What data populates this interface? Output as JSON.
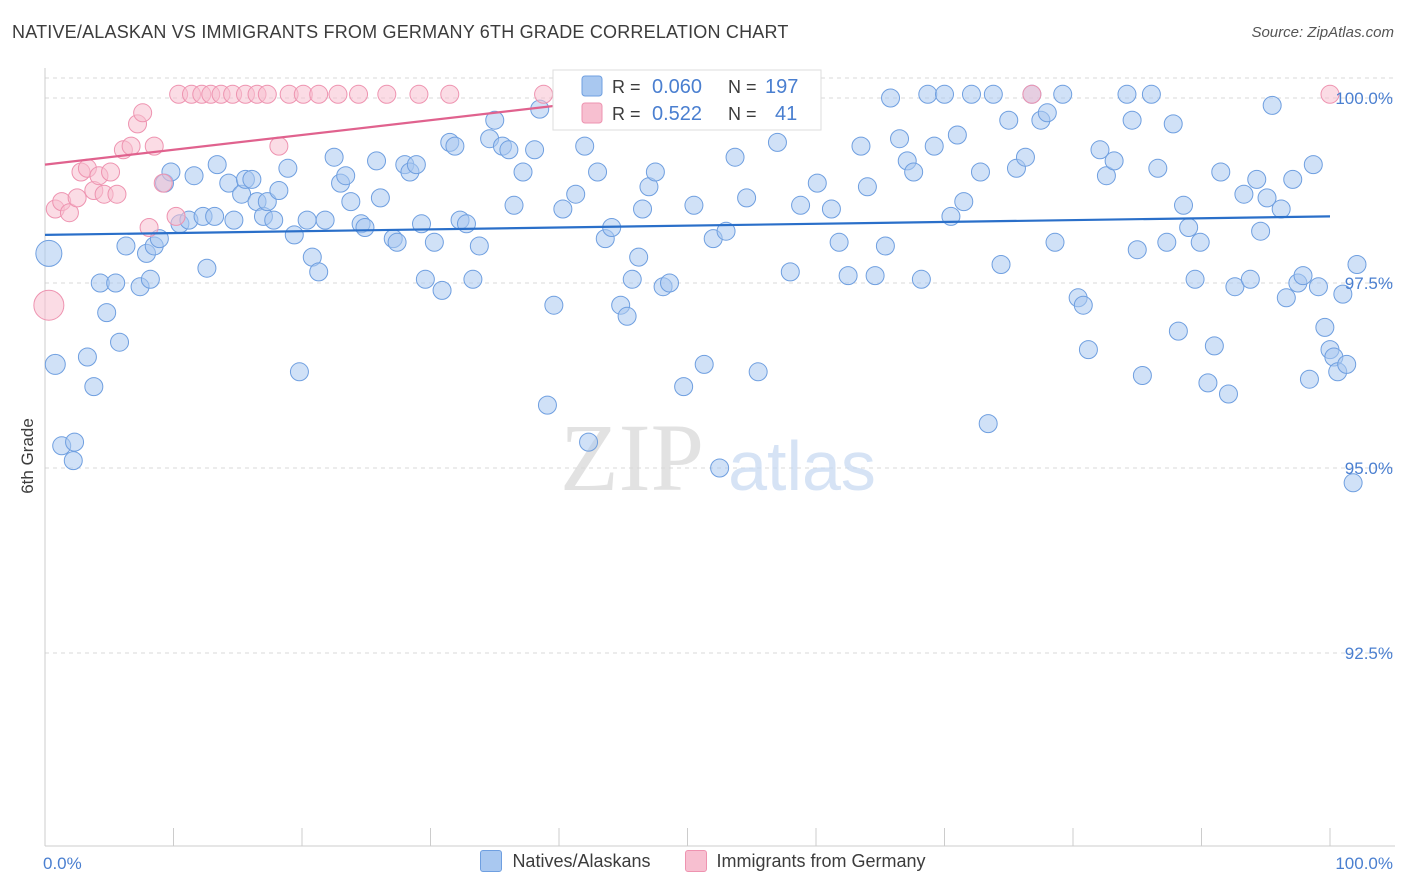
{
  "title": "NATIVE/ALASKAN VS IMMIGRANTS FROM GERMANY 6TH GRADE CORRELATION CHART",
  "source": "Source: ZipAtlas.com",
  "watermark": {
    "zip": "ZIP",
    "atlas": "atlas"
  },
  "colors": {
    "blue_fill": "#a9c8f0",
    "blue_stroke": "#6f9fe0",
    "blue_line": "#2a6fc9",
    "pink_fill": "#f7bfd0",
    "pink_stroke": "#ee93b0",
    "pink_line": "#e0628e",
    "tick_label": "#4a7fd0",
    "grid": "#d8d8d8"
  },
  "legend_stats": [
    {
      "r_label": "R =",
      "r_value": "0.060",
      "n_label": "N =",
      "n_value": "197",
      "series": "blue"
    },
    {
      "r_label": "R =",
      "r_value": "0.522",
      "n_label": "N =",
      "n_value": "41",
      "series": "pink"
    }
  ],
  "chart_data": {
    "type": "scatter",
    "title": "NATIVE/ALASKAN VS IMMIGRANTS FROM GERMANY 6TH GRADE CORRELATION CHART",
    "xlabel": "",
    "ylabel": "6th Grade",
    "xlim": [
      0,
      100
    ],
    "ylim": [
      90.8,
      100.4
    ],
    "x_tick_labels": [
      {
        "value": 0,
        "label": "0.0%"
      },
      {
        "value": 100,
        "label": "100.0%"
      }
    ],
    "y_tick_labels": [
      {
        "value": 100,
        "label": "100.0%"
      },
      {
        "value": 97.5,
        "label": "97.5%"
      },
      {
        "value": 95,
        "label": "95.0%"
      },
      {
        "value": 92.5,
        "label": "92.5%"
      }
    ],
    "grid": true,
    "legend_position": "bottom",
    "series": [
      {
        "name": "Natives/Alaskans",
        "color": "blue",
        "trend": {
          "x": [
            0,
            100
          ],
          "y": [
            98.15,
            98.4
          ]
        },
        "points": [
          [
            0.3,
            97.9,
            26
          ],
          [
            0.8,
            96.4,
            20
          ],
          [
            1.3,
            95.3,
            18
          ],
          [
            2.3,
            95.35,
            18
          ],
          [
            2.2,
            95.1,
            18
          ],
          [
            3.3,
            96.5,
            18
          ],
          [
            3.8,
            96.1,
            18
          ],
          [
            4.3,
            97.5,
            18
          ],
          [
            4.8,
            97.1,
            18
          ],
          [
            5.5,
            97.5,
            18
          ],
          [
            5.8,
            96.7,
            18
          ],
          [
            6.3,
            98.0,
            18
          ],
          [
            7.4,
            97.45,
            18
          ],
          [
            7.9,
            97.9,
            18
          ],
          [
            8.2,
            97.55,
            18
          ],
          [
            8.5,
            98.0,
            18
          ],
          [
            8.9,
            98.1,
            18
          ],
          [
            9.3,
            98.85,
            18
          ],
          [
            9.8,
            99.0,
            18
          ],
          [
            10.5,
            98.3,
            18
          ],
          [
            11.2,
            98.35,
            18
          ],
          [
            11.6,
            98.95,
            18
          ],
          [
            12.3,
            98.4,
            18
          ],
          [
            12.6,
            97.7,
            18
          ],
          [
            13.2,
            98.4,
            18
          ],
          [
            13.4,
            99.1,
            18
          ],
          [
            14.3,
            98.85,
            18
          ],
          [
            14.7,
            98.35,
            18
          ],
          [
            15.3,
            98.7,
            18
          ],
          [
            15.6,
            98.9,
            18
          ],
          [
            16.1,
            98.9,
            18
          ],
          [
            16.5,
            98.6,
            18
          ],
          [
            17.0,
            98.4,
            18
          ],
          [
            17.3,
            98.6,
            18
          ],
          [
            17.8,
            98.35,
            18
          ],
          [
            18.2,
            98.75,
            18
          ],
          [
            18.9,
            99.05,
            18
          ],
          [
            19.4,
            98.15,
            18
          ],
          [
            19.8,
            96.3,
            18
          ],
          [
            20.4,
            98.35,
            18
          ],
          [
            20.8,
            97.85,
            18
          ],
          [
            21.3,
            97.65,
            18
          ],
          [
            21.8,
            98.35,
            18
          ],
          [
            22.5,
            99.2,
            18
          ],
          [
            23.0,
            98.85,
            18
          ],
          [
            23.4,
            98.95,
            18
          ],
          [
            23.8,
            98.6,
            18
          ],
          [
            24.6,
            98.3,
            18
          ],
          [
            24.9,
            98.25,
            18
          ],
          [
            25.8,
            99.15,
            18
          ],
          [
            26.1,
            98.65,
            18
          ],
          [
            27.1,
            98.1,
            18
          ],
          [
            27.4,
            98.05,
            18
          ],
          [
            28.0,
            99.1,
            18
          ],
          [
            28.4,
            99.0,
            18
          ],
          [
            28.9,
            99.1,
            18
          ],
          [
            29.3,
            98.3,
            18
          ],
          [
            29.6,
            97.55,
            18
          ],
          [
            30.3,
            98.05,
            18
          ],
          [
            30.9,
            97.4,
            18
          ],
          [
            31.5,
            99.4,
            18
          ],
          [
            31.9,
            99.35,
            18
          ],
          [
            32.3,
            98.35,
            18
          ],
          [
            32.8,
            98.3,
            18
          ],
          [
            33.3,
            97.55,
            18
          ],
          [
            33.8,
            98.0,
            18
          ],
          [
            34.6,
            99.45,
            18
          ],
          [
            35.0,
            99.7,
            18
          ],
          [
            35.6,
            99.35,
            18
          ],
          [
            36.1,
            99.3,
            18
          ],
          [
            36.5,
            98.55,
            18
          ],
          [
            37.2,
            99.0,
            18
          ],
          [
            38.1,
            99.3,
            18
          ],
          [
            38.5,
            99.85,
            18
          ],
          [
            39.1,
            95.85,
            18
          ],
          [
            39.6,
            97.2,
            18
          ],
          [
            40.3,
            98.5,
            18
          ],
          [
            41.3,
            98.7,
            18
          ],
          [
            42.0,
            99.35,
            18
          ],
          [
            42.3,
            95.35,
            18
          ],
          [
            43.0,
            99.0,
            18
          ],
          [
            43.6,
            98.1,
            18
          ],
          [
            44.1,
            98.25,
            18
          ],
          [
            44.8,
            97.2,
            18
          ],
          [
            45.3,
            97.05,
            18
          ],
          [
            45.7,
            97.55,
            18
          ],
          [
            46.2,
            97.85,
            18
          ],
          [
            46.5,
            98.5,
            18
          ],
          [
            47.0,
            98.8,
            18
          ],
          [
            47.5,
            99.0,
            18
          ],
          [
            48.1,
            97.45,
            18
          ],
          [
            48.6,
            97.5,
            18
          ],
          [
            49.7,
            96.1,
            18
          ],
          [
            50.5,
            98.55,
            18
          ],
          [
            51.3,
            96.4,
            18
          ],
          [
            52.0,
            98.1,
            18
          ],
          [
            52.5,
            95.0,
            18
          ],
          [
            53.0,
            98.2,
            18
          ],
          [
            53.7,
            99.2,
            18
          ],
          [
            54.6,
            98.65,
            18
          ],
          [
            55.5,
            96.3,
            18
          ],
          [
            56.2,
            99.75,
            18
          ],
          [
            57.0,
            99.4,
            18
          ],
          [
            58.0,
            97.65,
            18
          ],
          [
            58.8,
            98.55,
            18
          ],
          [
            60.1,
            98.85,
            18
          ],
          [
            61.2,
            98.5,
            18
          ],
          [
            61.8,
            98.05,
            18
          ],
          [
            62.5,
            97.6,
            18
          ],
          [
            63.5,
            99.35,
            18
          ],
          [
            64.0,
            98.8,
            18
          ],
          [
            64.6,
            97.6,
            18
          ],
          [
            65.4,
            98.0,
            18
          ],
          [
            65.8,
            100.0,
            18
          ],
          [
            66.5,
            99.45,
            18
          ],
          [
            67.1,
            99.15,
            18
          ],
          [
            67.6,
            99.0,
            18
          ],
          [
            68.2,
            97.55,
            18
          ],
          [
            68.7,
            100.05,
            18
          ],
          [
            69.2,
            99.35,
            18
          ],
          [
            70.0,
            100.05,
            18
          ],
          [
            70.5,
            98.4,
            18
          ],
          [
            71.0,
            99.5,
            18
          ],
          [
            71.5,
            98.6,
            18
          ],
          [
            72.1,
            100.05,
            18
          ],
          [
            72.8,
            99.0,
            18
          ],
          [
            73.4,
            95.6,
            18
          ],
          [
            73.8,
            100.05,
            18
          ],
          [
            74.4,
            97.75,
            18
          ],
          [
            75.0,
            99.7,
            18
          ],
          [
            75.6,
            99.05,
            18
          ],
          [
            76.3,
            99.2,
            18
          ],
          [
            76.8,
            100.05,
            18
          ],
          [
            77.5,
            99.7,
            18
          ],
          [
            78.0,
            99.8,
            18
          ],
          [
            78.6,
            98.05,
            18
          ],
          [
            79.2,
            100.05,
            18
          ],
          [
            80.4,
            97.3,
            18
          ],
          [
            80.8,
            97.2,
            18
          ],
          [
            81.2,
            96.6,
            18
          ],
          [
            82.1,
            99.3,
            18
          ],
          [
            82.6,
            98.95,
            18
          ],
          [
            83.2,
            99.15,
            18
          ],
          [
            84.2,
            100.05,
            18
          ],
          [
            84.6,
            99.7,
            18
          ],
          [
            85.0,
            97.95,
            18
          ],
          [
            85.4,
            96.25,
            18
          ],
          [
            86.1,
            100.05,
            18
          ],
          [
            86.6,
            99.05,
            18
          ],
          [
            87.3,
            98.05,
            18
          ],
          [
            87.8,
            99.65,
            18
          ],
          [
            88.2,
            96.85,
            18
          ],
          [
            88.6,
            98.55,
            18
          ],
          [
            89.0,
            98.25,
            18
          ],
          [
            89.5,
            97.55,
            18
          ],
          [
            89.9,
            98.05,
            18
          ],
          [
            90.5,
            96.15,
            18
          ],
          [
            91.0,
            96.65,
            18
          ],
          [
            91.5,
            99.0,
            18
          ],
          [
            92.1,
            96.0,
            18
          ],
          [
            92.6,
            97.45,
            18
          ],
          [
            93.3,
            98.7,
            18
          ],
          [
            93.8,
            97.55,
            18
          ],
          [
            94.3,
            98.9,
            18
          ],
          [
            94.6,
            98.2,
            18
          ],
          [
            95.1,
            98.65,
            18
          ],
          [
            95.5,
            99.9,
            18
          ],
          [
            96.2,
            98.5,
            18
          ],
          [
            96.6,
            97.3,
            18
          ],
          [
            97.1,
            98.9,
            18
          ],
          [
            97.5,
            97.5,
            18
          ],
          [
            97.9,
            97.6,
            18
          ],
          [
            98.4,
            96.2,
            18
          ],
          [
            98.7,
            99.1,
            18
          ],
          [
            99.1,
            97.45,
            18
          ],
          [
            99.6,
            96.9,
            18
          ],
          [
            100.0,
            96.6,
            18
          ],
          [
            100.3,
            96.5,
            18
          ],
          [
            100.6,
            96.3,
            18
          ],
          [
            101.0,
            97.35,
            18
          ],
          [
            101.3,
            96.4,
            18
          ],
          [
            101.8,
            94.8,
            18
          ],
          [
            102.1,
            97.75,
            18
          ]
        ]
      },
      {
        "name": "Immigrants from Germany",
        "color": "pink",
        "trend": {
          "x": [
            0,
            40
          ],
          "y": [
            99.1,
            99.9
          ]
        },
        "points": [
          [
            0.3,
            97.2,
            30
          ],
          [
            0.8,
            98.5,
            18
          ],
          [
            1.3,
            98.6,
            18
          ],
          [
            1.9,
            98.45,
            18
          ],
          [
            2.5,
            98.65,
            18
          ],
          [
            2.8,
            99.0,
            18
          ],
          [
            3.3,
            99.05,
            18
          ],
          [
            3.8,
            98.75,
            18
          ],
          [
            4.2,
            98.95,
            18
          ],
          [
            4.6,
            98.7,
            18
          ],
          [
            5.1,
            99.0,
            18
          ],
          [
            5.6,
            98.7,
            18
          ],
          [
            6.1,
            99.3,
            18
          ],
          [
            6.7,
            99.35,
            18
          ],
          [
            7.2,
            99.65,
            18
          ],
          [
            7.6,
            99.8,
            18
          ],
          [
            8.1,
            98.25,
            18
          ],
          [
            8.5,
            99.35,
            18
          ],
          [
            9.2,
            98.85,
            18
          ],
          [
            10.2,
            98.4,
            18
          ],
          [
            10.4,
            100.05,
            18
          ],
          [
            11.4,
            100.05,
            18
          ],
          [
            12.2,
            100.05,
            18
          ],
          [
            12.9,
            100.05,
            18
          ],
          [
            13.7,
            100.05,
            18
          ],
          [
            14.6,
            100.05,
            18
          ],
          [
            15.6,
            100.05,
            18
          ],
          [
            16.5,
            100.05,
            18
          ],
          [
            17.3,
            100.05,
            18
          ],
          [
            18.2,
            99.35,
            18
          ],
          [
            19.0,
            100.05,
            18
          ],
          [
            20.1,
            100.05,
            18
          ],
          [
            21.3,
            100.05,
            18
          ],
          [
            22.8,
            100.05,
            18
          ],
          [
            24.4,
            100.05,
            18
          ],
          [
            26.6,
            100.05,
            18
          ],
          [
            29.1,
            100.05,
            18
          ],
          [
            31.5,
            100.05,
            18
          ],
          [
            38.8,
            100.05,
            18
          ],
          [
            76.8,
            100.05,
            18
          ],
          [
            100.0,
            100.05,
            18
          ]
        ]
      }
    ]
  }
}
